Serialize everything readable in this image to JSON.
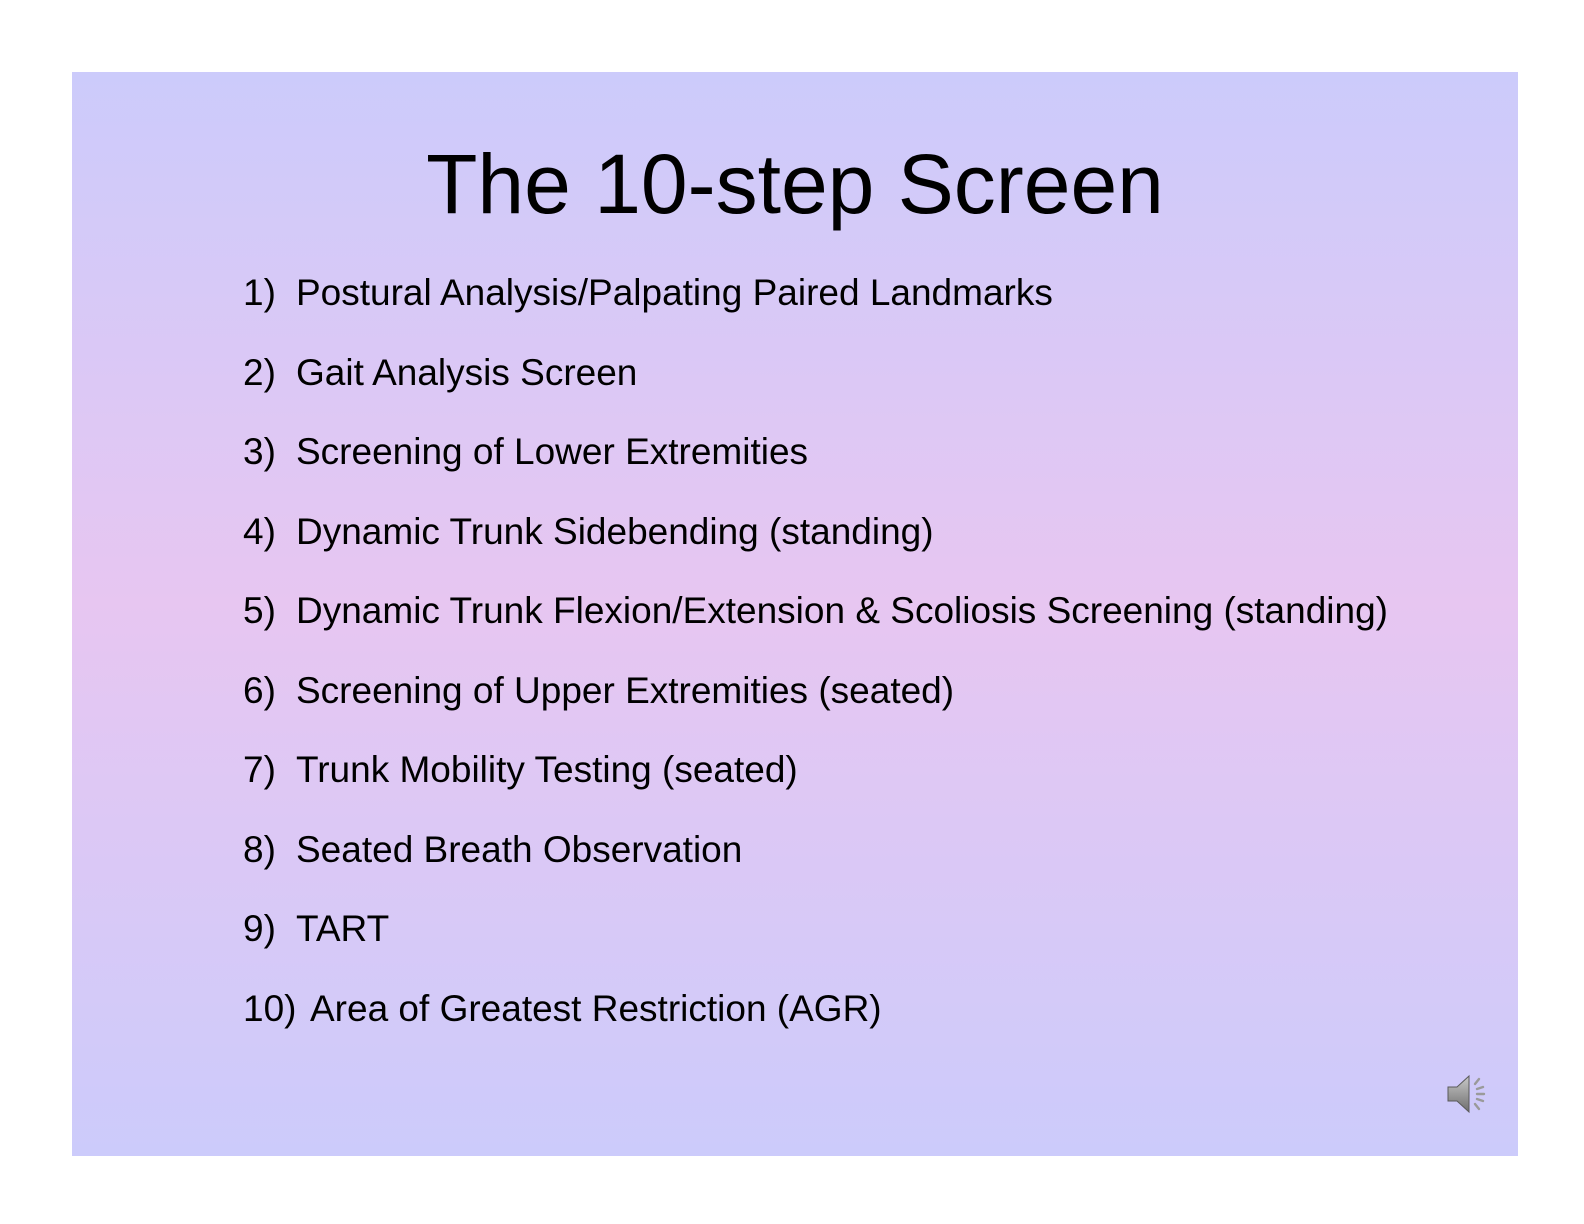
{
  "slide": {
    "title": "The 10-step Screen",
    "items": [
      {
        "number": "1)",
        "text": "Postural Analysis/Palpating Paired Landmarks"
      },
      {
        "number": "2)",
        "text": "Gait Analysis Screen"
      },
      {
        "number": "3)",
        "text": "Screening of Lower Extremities"
      },
      {
        "number": "4)",
        "text": "Dynamic Trunk Sidebending (standing)"
      },
      {
        "number": "5)",
        "text": "Dynamic Trunk Flexion/Extension & Scoliosis Screening (standing)"
      },
      {
        "number": "6)",
        "text": "Screening of Upper Extremities (seated)"
      },
      {
        "number": "7)",
        "text": "Trunk Mobility Testing (seated)"
      },
      {
        "number": "8)",
        "text": "Seated Breath Observation"
      },
      {
        "number": "9)",
        "text": "TART"
      },
      {
        "number": "10)",
        "text": "Area of Greatest Restriction (AGR)"
      }
    ],
    "audio_icon": "speaker-icon",
    "colors": {
      "gradient_edge": "#cccbfb",
      "gradient_center": "#e7c6f1",
      "text": "#000000"
    }
  }
}
